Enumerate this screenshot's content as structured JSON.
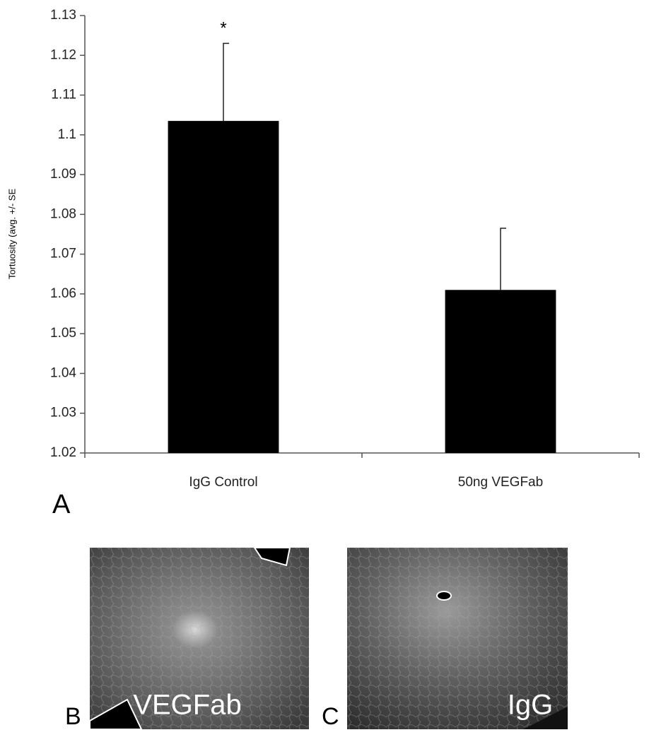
{
  "chart_data": {
    "type": "bar",
    "ylabel": "Tortuosity (avg. +/- SE",
    "categories": [
      "IgG Control",
      "50ng VEGFab"
    ],
    "values": [
      1.1035,
      1.061
    ],
    "errors": [
      0.0195,
      0.0155
    ],
    "color": "#000000",
    "ylim": [
      1.02,
      1.13
    ],
    "yticks": [
      1.02,
      1.03,
      1.04,
      1.05,
      1.06,
      1.07,
      1.08,
      1.09,
      1.1,
      1.11,
      1.12,
      1.13
    ],
    "annotation": "*",
    "panel_labels": [
      "A",
      "B",
      "C"
    ],
    "image_labels": [
      "VEGFab",
      "IgG"
    ]
  }
}
